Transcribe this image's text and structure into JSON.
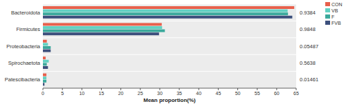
{
  "chart_data": {
    "type": "bar",
    "orientation": "horizontal",
    "categories": [
      "Bacteroidota",
      "Firmicutes",
      "Proteobacteria",
      "Spirochaetota",
      "Patescibacteria"
    ],
    "series": [
      {
        "name": "CON",
        "color": "#e8604c",
        "values": [
          64.5,
          30.5,
          1.0,
          0.7,
          0.9
        ]
      },
      {
        "name": "VB",
        "color": "#62d1c2",
        "values": [
          62.8,
          30.6,
          1.3,
          1.5,
          0.9
        ]
      },
      {
        "name": "F",
        "color": "#3ba99c",
        "values": [
          62.9,
          31.3,
          2.0,
          1.0,
          0.9
        ]
      },
      {
        "name": "FVB",
        "color": "#3c4f7c",
        "values": [
          64.0,
          29.8,
          2.0,
          1.3,
          0.4
        ]
      }
    ],
    "p_values": [
      0.9384,
      0.9848,
      0.05487,
      0.5638,
      0.01461
    ],
    "xlabel": "Mean proportion(%)",
    "xlim": [
      0,
      65
    ],
    "xticks": [
      0,
      5,
      10,
      15,
      20,
      25,
      30,
      35,
      40,
      45,
      50,
      55,
      60,
      65
    ],
    "grid": false,
    "legend": "top-right"
  }
}
